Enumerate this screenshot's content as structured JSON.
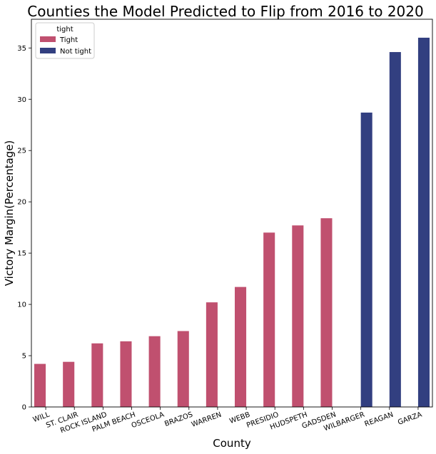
{
  "chart_data": {
    "type": "bar",
    "title": "Counties the Model Predicted to Flip from 2016 to 2020",
    "xlabel": "County",
    "ylabel": "Victory Margin(Percentage)",
    "ylim": [
      0,
      37.8
    ],
    "yticks": [
      0,
      5,
      10,
      15,
      20,
      25,
      30,
      35
    ],
    "grid": false,
    "categories": [
      "WILL",
      "ST. CLAIR",
      "ROCK ISLAND",
      "PALM BEACH",
      "OSCEOLA",
      "BRAZOS",
      "WARREN",
      "WEBB",
      "PRESIDIO",
      "HUDSPETH",
      "GADSDEN",
      "WILBARGER",
      "REAGAN",
      "GARZA"
    ],
    "legend": {
      "title": "tight",
      "placement": "top-left"
    },
    "series": [
      {
        "name": "Tight",
        "color": "#c0506f",
        "values": [
          4.2,
          4.4,
          6.2,
          6.4,
          6.9,
          7.4,
          10.2,
          11.7,
          17.0,
          17.7,
          18.4,
          null,
          null,
          null
        ]
      },
      {
        "name": "Not tight",
        "color": "#323f80",
        "values": [
          null,
          null,
          null,
          null,
          null,
          null,
          null,
          null,
          null,
          null,
          null,
          28.7,
          34.6,
          36.0
        ]
      }
    ]
  }
}
